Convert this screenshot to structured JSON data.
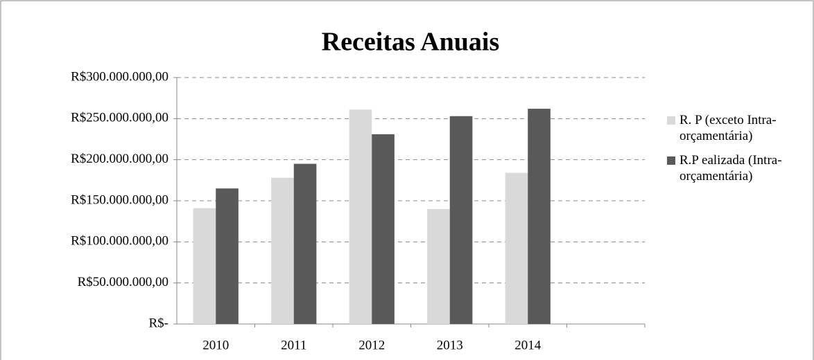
{
  "chart_data": {
    "type": "bar",
    "title": "Receitas Anuais",
    "categories": [
      "2010",
      "2011",
      "2012",
      "2013",
      "2014",
      null
    ],
    "series": [
      {
        "name": "R. P (exceto Intra-orçamentária)",
        "color": "#d9d9d9",
        "values": [
          141000000,
          178000000,
          261000000,
          140000000,
          184000000,
          null
        ]
      },
      {
        "name": "R.P ealizada (Intra-orçamentária)",
        "color": "#595959",
        "values": [
          165000000,
          195000000,
          231000000,
          253000000,
          262000000,
          null
        ]
      }
    ],
    "ylim": [
      0,
      300000000
    ],
    "yticks": [
      {
        "value": 0,
        "label": "R$-"
      },
      {
        "value": 50000000,
        "label": "R$50.000.000,00"
      },
      {
        "value": 100000000,
        "label": "R$100.000.000,00"
      },
      {
        "value": 150000000,
        "label": "R$150.000.000,00"
      },
      {
        "value": 200000000,
        "label": "R$200.000.000,00"
      },
      {
        "value": 250000000,
        "label": "R$250.000.000,00"
      },
      {
        "value": 300000000,
        "label": "R$300.000.000,00"
      }
    ],
    "grid": true,
    "legend": "right"
  }
}
